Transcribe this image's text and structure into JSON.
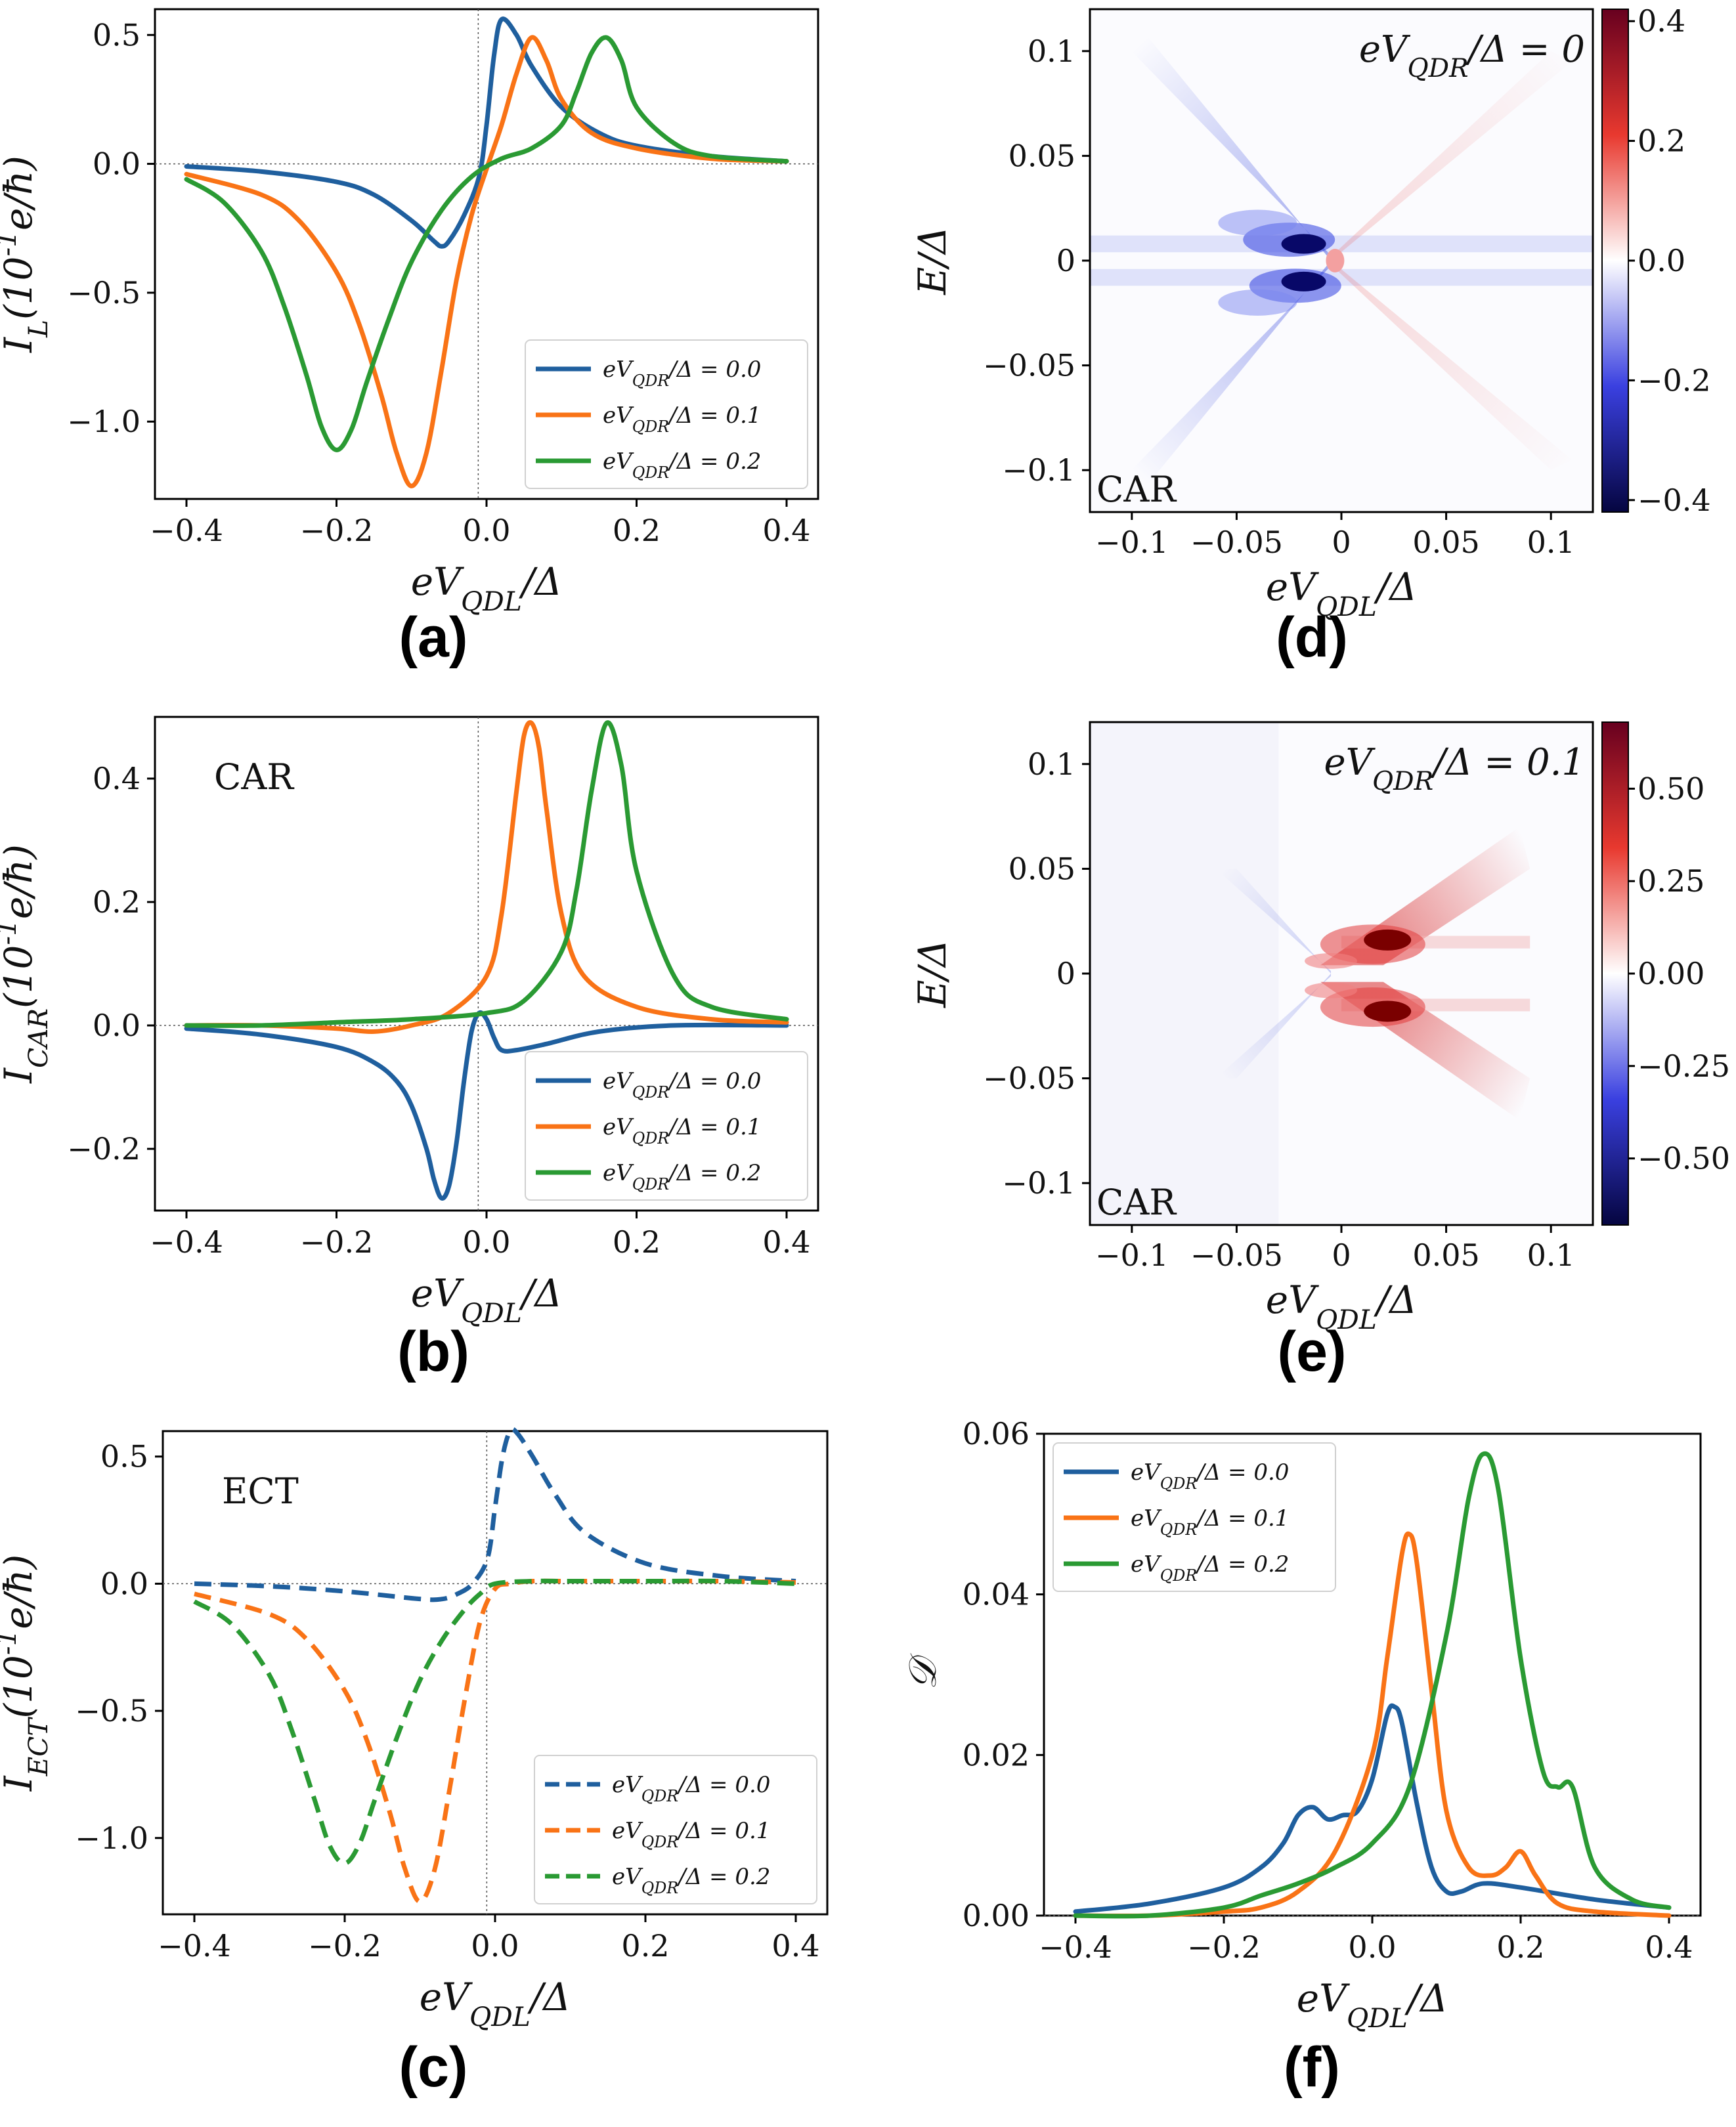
{
  "colors": {
    "blue": "#1f5f9e",
    "orange": "#f97316",
    "green": "#2a9a33"
  },
  "chart_data": [
    {
      "panel": "(a)",
      "type": "line",
      "ylabel": "I_L(10^{-1}e/ħ)",
      "xlabel": "eV_QDL/Δ",
      "xlim": [
        -0.4,
        0.4
      ],
      "ylim": [
        -1.3,
        0.6
      ],
      "xticks": [
        "−0.4",
        "−0.2",
        "0.0",
        "0.2",
        "0.4"
      ],
      "yticks": [
        "−1.0",
        "−0.5",
        "0.0",
        "0.5"
      ],
      "legend": "lower-right",
      "line_style": "solid",
      "series": [
        {
          "name": "eV_QDR/Δ = 0.0",
          "color": "blue",
          "x": [
            -0.4,
            -0.3,
            -0.2,
            -0.15,
            -0.1,
            -0.07,
            -0.06,
            -0.05,
            -0.03,
            -0.01,
            0.0,
            0.01,
            0.02,
            0.04,
            0.06,
            0.1,
            0.15,
            0.2,
            0.3,
            0.4
          ],
          "y": [
            -0.01,
            -0.03,
            -0.07,
            -0.12,
            -0.22,
            -0.3,
            -0.32,
            -0.3,
            -0.2,
            -0.05,
            0.15,
            0.42,
            0.56,
            0.5,
            0.38,
            0.22,
            0.12,
            0.07,
            0.03,
            0.01
          ]
        },
        {
          "name": "eV_QDR/Δ = 0.1",
          "color": "orange",
          "x": [
            -0.4,
            -0.3,
            -0.25,
            -0.2,
            -0.17,
            -0.14,
            -0.12,
            -0.1,
            -0.08,
            -0.06,
            -0.04,
            -0.02,
            0.0,
            0.02,
            0.04,
            0.06,
            0.08,
            0.1,
            0.14,
            0.2,
            0.3,
            0.4
          ],
          "y": [
            -0.04,
            -0.12,
            -0.22,
            -0.42,
            -0.62,
            -0.9,
            -1.12,
            -1.25,
            -1.12,
            -0.8,
            -0.45,
            -0.2,
            -0.02,
            0.15,
            0.35,
            0.49,
            0.4,
            0.25,
            0.12,
            0.06,
            0.02,
            0.01
          ]
        },
        {
          "name": "eV_QDR/Δ = 0.2",
          "color": "green",
          "x": [
            -0.4,
            -0.35,
            -0.3,
            -0.27,
            -0.24,
            -0.22,
            -0.2,
            -0.18,
            -0.16,
            -0.13,
            -0.1,
            -0.06,
            -0.02,
            0.02,
            0.06,
            0.1,
            0.12,
            0.14,
            0.16,
            0.18,
            0.2,
            0.25,
            0.3,
            0.4
          ],
          "y": [
            -0.06,
            -0.15,
            -0.34,
            -0.55,
            -0.82,
            -1.02,
            -1.11,
            -1.03,
            -0.85,
            -0.6,
            -0.38,
            -0.18,
            -0.05,
            0.02,
            0.06,
            0.15,
            0.28,
            0.43,
            0.49,
            0.4,
            0.22,
            0.08,
            0.03,
            0.01
          ]
        }
      ]
    },
    {
      "panel": "(b)",
      "type": "line",
      "annotation": "CAR",
      "ylabel": "I_CAR(10^{-1}e/ħ)",
      "xlabel": "eV_QDL/Δ",
      "xlim": [
        -0.4,
        0.4
      ],
      "ylim": [
        -0.3,
        0.5
      ],
      "xticks": [
        "−0.4",
        "−0.2",
        "0.0",
        "0.2",
        "0.4"
      ],
      "yticks": [
        "−0.2",
        "0.0",
        "0.2",
        "0.4"
      ],
      "legend": "lower-right",
      "line_style": "solid",
      "series": [
        {
          "name": "eV_QDR/Δ = 0.0",
          "color": "blue",
          "x": [
            -0.4,
            -0.3,
            -0.2,
            -0.15,
            -0.12,
            -0.1,
            -0.08,
            -0.07,
            -0.06,
            -0.05,
            -0.04,
            -0.03,
            -0.02,
            -0.01,
            0.0,
            0.01,
            0.02,
            0.04,
            0.08,
            0.15,
            0.25,
            0.4
          ],
          "y": [
            -0.005,
            -0.015,
            -0.035,
            -0.06,
            -0.09,
            -0.13,
            -0.2,
            -0.25,
            -0.28,
            -0.26,
            -0.19,
            -0.09,
            -0.01,
            0.02,
            0.01,
            -0.02,
            -0.04,
            -0.04,
            -0.03,
            -0.01,
            0.0,
            0.0
          ]
        },
        {
          "name": "eV_QDR/Δ = 0.1",
          "color": "orange",
          "x": [
            -0.4,
            -0.3,
            -0.2,
            -0.15,
            -0.1,
            -0.05,
            0.0,
            0.02,
            0.04,
            0.05,
            0.06,
            0.07,
            0.08,
            0.1,
            0.13,
            0.2,
            0.3,
            0.4
          ],
          "y": [
            0.0,
            0.0,
            -0.005,
            -0.01,
            0.0,
            0.02,
            0.08,
            0.18,
            0.38,
            0.47,
            0.49,
            0.45,
            0.35,
            0.18,
            0.08,
            0.03,
            0.01,
            0.005
          ]
        },
        {
          "name": "eV_QDR/Δ = 0.2",
          "color": "green",
          "x": [
            -0.4,
            -0.3,
            -0.2,
            -0.1,
            0.0,
            0.05,
            0.1,
            0.12,
            0.14,
            0.16,
            0.18,
            0.2,
            0.25,
            0.3,
            0.4
          ],
          "y": [
            0.0,
            0.0,
            0.005,
            0.01,
            0.02,
            0.04,
            0.12,
            0.22,
            0.38,
            0.49,
            0.42,
            0.25,
            0.08,
            0.03,
            0.01
          ]
        }
      ]
    },
    {
      "panel": "(c)",
      "type": "line",
      "annotation": "ECT",
      "ylabel": "I_ECT(10^{-1}e/ħ)",
      "xlabel": "eV_QDL/Δ",
      "xlim": [
        -0.4,
        0.4
      ],
      "ylim": [
        -1.3,
        0.6
      ],
      "xticks": [
        "−0.4",
        "−0.2",
        "0.0",
        "0.2",
        "0.4"
      ],
      "yticks": [
        "−1.0",
        "−0.5",
        "0.0",
        "0.5"
      ],
      "legend": "lower-right",
      "line_style": "dashed",
      "series": [
        {
          "name": "eV_QDR/Δ = 0.0",
          "color": "blue",
          "x": [
            -0.4,
            -0.3,
            -0.2,
            -0.1,
            -0.07,
            -0.05,
            -0.03,
            -0.01,
            0.0,
            0.01,
            0.02,
            0.03,
            0.05,
            0.08,
            0.12,
            0.2,
            0.3,
            0.4
          ],
          "y": [
            0.0,
            -0.01,
            -0.03,
            -0.06,
            -0.06,
            -0.04,
            0.0,
            0.1,
            0.3,
            0.5,
            0.6,
            0.59,
            0.5,
            0.35,
            0.2,
            0.08,
            0.03,
            0.01
          ]
        },
        {
          "name": "eV_QDR/Δ = 0.1",
          "color": "orange",
          "x": [
            -0.4,
            -0.3,
            -0.25,
            -0.2,
            -0.17,
            -0.14,
            -0.12,
            -0.1,
            -0.08,
            -0.06,
            -0.04,
            -0.02,
            0.0,
            0.02,
            0.05,
            0.1,
            0.2,
            0.3,
            0.4
          ],
          "y": [
            -0.04,
            -0.12,
            -0.22,
            -0.42,
            -0.62,
            -0.9,
            -1.12,
            -1.25,
            -1.12,
            -0.8,
            -0.45,
            -0.15,
            -0.02,
            0.0,
            0.01,
            0.01,
            0.01,
            0.01,
            0.005
          ]
        },
        {
          "name": "eV_QDR/Δ = 0.2",
          "color": "green",
          "x": [
            -0.4,
            -0.35,
            -0.3,
            -0.27,
            -0.24,
            -0.22,
            -0.2,
            -0.18,
            -0.16,
            -0.13,
            -0.1,
            -0.07,
            -0.04,
            -0.02,
            0.0,
            0.05,
            0.1,
            0.2,
            0.3,
            0.4
          ],
          "y": [
            -0.07,
            -0.16,
            -0.36,
            -0.58,
            -0.85,
            -1.03,
            -1.1,
            -1.02,
            -0.85,
            -0.6,
            -0.38,
            -0.22,
            -0.1,
            -0.04,
            0.0,
            0.01,
            0.01,
            0.01,
            0.01,
            0.0
          ]
        }
      ]
    },
    {
      "panel": "(d)",
      "type": "heatmap",
      "annotation": "CAR",
      "title": "eV_QDR/Δ = 0",
      "ylabel": "E/Δ",
      "xlabel": "eV_QDL/Δ",
      "xlim": [
        -0.12,
        0.12
      ],
      "ylim": [
        -0.12,
        0.12
      ],
      "xticks": [
        "−0.1",
        "−0.05",
        "0",
        "0.05",
        "0.1"
      ],
      "yticks": [
        "0.1",
        "0.05",
        "0",
        "−0.05",
        "−0.1"
      ],
      "colorbar": {
        "min": -0.42,
        "max": 0.42,
        "ticks": [
          "0.4",
          "0.2",
          "0.0",
          "−0.2",
          "−0.4"
        ]
      }
    },
    {
      "panel": "(e)",
      "type": "heatmap",
      "annotation": "CAR",
      "title": "eV_QDR/Δ = 0.1",
      "ylabel": "E/Δ",
      "xlabel": "eV_QDL/Δ",
      "xlim": [
        -0.12,
        0.12
      ],
      "ylim": [
        -0.12,
        0.12
      ],
      "xticks": [
        "−0.1",
        "−0.05",
        "0",
        "0.05",
        "0.1"
      ],
      "yticks": [
        "0.1",
        "0.05",
        "0",
        "−0.05",
        "−0.1"
      ],
      "colorbar": {
        "min": -0.68,
        "max": 0.68,
        "ticks": [
          "0.50",
          "0.25",
          "0.00",
          "−0.25",
          "−0.50"
        ]
      }
    },
    {
      "panel": "(f)",
      "type": "line",
      "ylabel": "𝒟",
      "xlabel": "eV_QDL/Δ",
      "xlim": [
        -0.4,
        0.4
      ],
      "ylim": [
        0.0,
        0.06
      ],
      "xticks": [
        "−0.4",
        "−0.2",
        "0.0",
        "0.2",
        "0.4"
      ],
      "yticks": [
        "0.06",
        "0.04",
        "0.02",
        "0.00"
      ],
      "legend": "top-left",
      "line_style": "solid",
      "series": [
        {
          "name": "eV_QDR/Δ = 0.0",
          "color": "blue",
          "x": [
            -0.4,
            -0.3,
            -0.2,
            -0.15,
            -0.12,
            -0.1,
            -0.08,
            -0.06,
            -0.04,
            -0.02,
            0.0,
            0.02,
            0.03,
            0.04,
            0.06,
            0.08,
            0.1,
            0.12,
            0.15,
            0.2,
            0.3,
            0.4
          ],
          "y": [
            0.0005,
            0.0015,
            0.0035,
            0.006,
            0.009,
            0.0125,
            0.0135,
            0.012,
            0.0125,
            0.013,
            0.017,
            0.025,
            0.026,
            0.024,
            0.014,
            0.006,
            0.003,
            0.003,
            0.004,
            0.0035,
            0.002,
            0.001
          ]
        },
        {
          "name": "eV_QDR/Δ = 0.1",
          "color": "orange",
          "x": [
            -0.4,
            -0.3,
            -0.2,
            -0.15,
            -0.1,
            -0.05,
            0.0,
            0.02,
            0.04,
            0.05,
            0.06,
            0.08,
            0.1,
            0.13,
            0.16,
            0.18,
            0.2,
            0.22,
            0.25,
            0.3,
            0.4
          ],
          "y": [
            0.0,
            0.0,
            0.0005,
            0.001,
            0.003,
            0.008,
            0.02,
            0.032,
            0.045,
            0.0475,
            0.044,
            0.028,
            0.013,
            0.006,
            0.005,
            0.006,
            0.008,
            0.005,
            0.0015,
            0.0005,
            0.0
          ]
        },
        {
          "name": "eV_QDR/Δ = 0.2",
          "color": "green",
          "x": [
            -0.4,
            -0.3,
            -0.2,
            -0.15,
            -0.1,
            -0.05,
            0.0,
            0.05,
            0.1,
            0.13,
            0.15,
            0.17,
            0.2,
            0.23,
            0.25,
            0.27,
            0.3,
            0.35,
            0.4
          ],
          "y": [
            0.0,
            0.0,
            0.001,
            0.0025,
            0.004,
            0.006,
            0.009,
            0.016,
            0.035,
            0.052,
            0.0575,
            0.053,
            0.032,
            0.018,
            0.016,
            0.016,
            0.006,
            0.002,
            0.001
          ]
        }
      ]
    }
  ],
  "panel_labels": {
    "a": "(a)",
    "b": "(b)",
    "c": "(c)",
    "d": "(d)",
    "e": "(e)",
    "f": "(f)"
  },
  "annotations": {
    "b": "CAR",
    "c": "ECT",
    "d": "CAR",
    "e": "CAR"
  }
}
